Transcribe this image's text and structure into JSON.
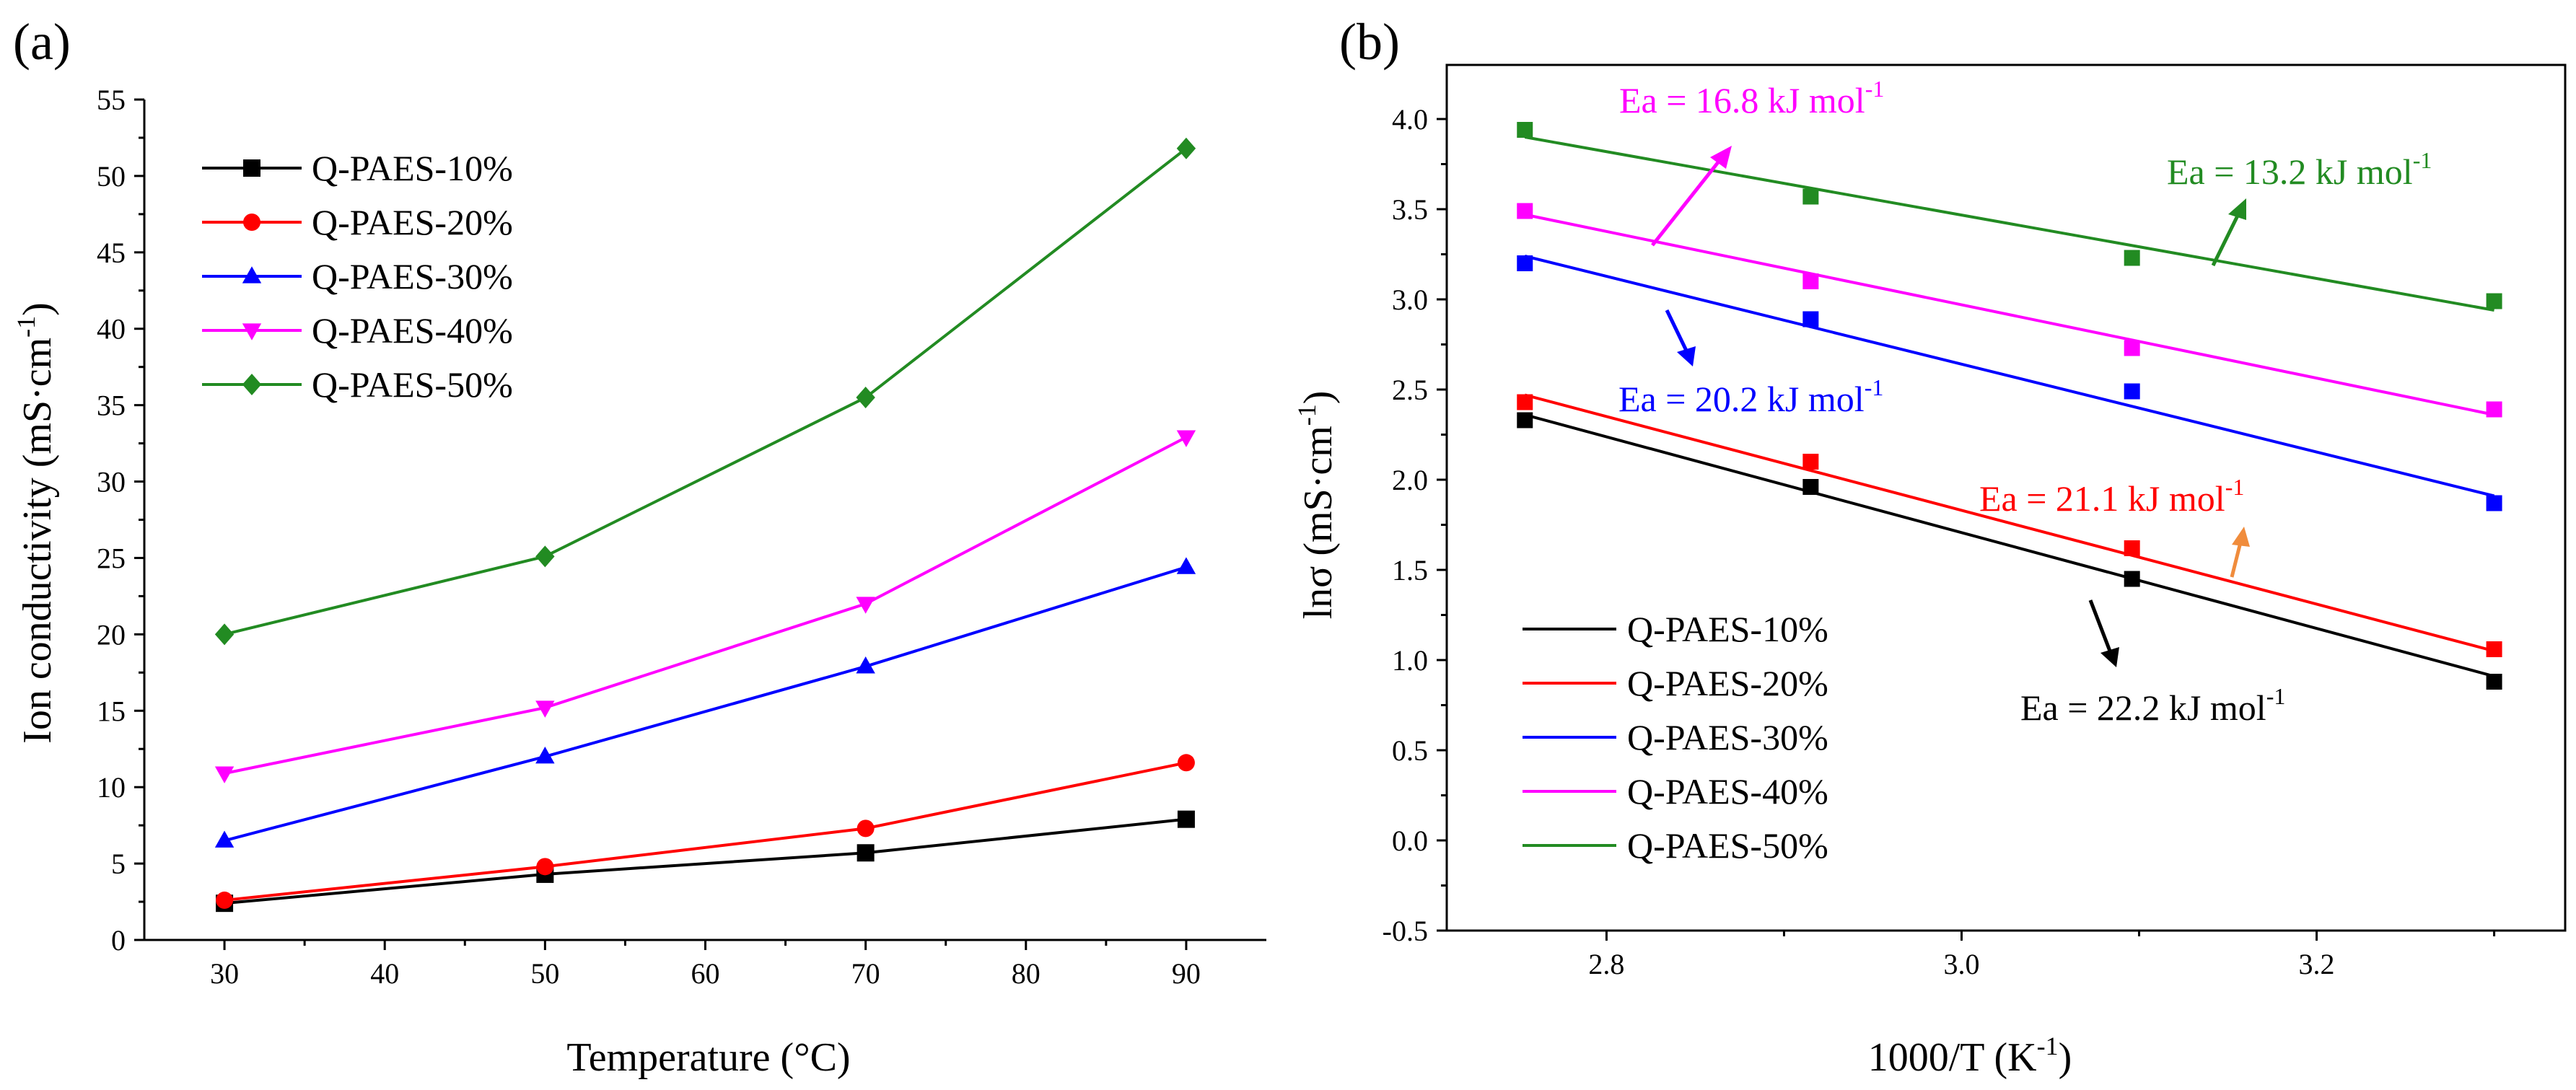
{
  "chart_data": [
    {
      "panel": "(a)",
      "type": "line",
      "title": "",
      "xlabel": "Temperature (°C)",
      "ylabel_main": "Ion conductivity (mS·cm",
      "ylabel_sup": "-1",
      "ylabel_end": ")",
      "xlim": [
        25,
        95
      ],
      "ylim": [
        0,
        55
      ],
      "xticks": [
        30,
        40,
        50,
        60,
        70,
        80,
        90
      ],
      "yticks": [
        0,
        5,
        10,
        15,
        20,
        25,
        30,
        35,
        40,
        45,
        50,
        55
      ],
      "grid": false,
      "legend_position": "top-left",
      "x": [
        30,
        50,
        70,
        90
      ],
      "series": [
        {
          "name": "Q-PAES-10%",
          "color": "#000000",
          "marker": "square",
          "values": [
            2.4,
            4.3,
            5.7,
            7.9
          ]
        },
        {
          "name": "Q-PAES-20%",
          "color": "#ff0000",
          "marker": "circle",
          "values": [
            2.6,
            4.8,
            7.3,
            11.6
          ]
        },
        {
          "name": "Q-PAES-30%",
          "color": "#0000ff",
          "marker": "triangle-up",
          "values": [
            6.5,
            12.0,
            17.9,
            24.4
          ]
        },
        {
          "name": "Q-PAES-40%",
          "color": "#ff00ff",
          "marker": "triangle-down",
          "values": [
            10.9,
            15.2,
            22.0,
            32.9
          ]
        },
        {
          "name": "Q-PAES-50%",
          "color": "#228b22",
          "marker": "diamond",
          "values": [
            20.0,
            25.1,
            35.5,
            51.8
          ]
        }
      ]
    },
    {
      "panel": "(b)",
      "type": "scatter",
      "title": "",
      "xlabel_main": "1000/T (K",
      "xlabel_sup": "-1",
      "xlabel_end": ")",
      "ylabel_main": "lnσ (mS·cm",
      "ylabel_sup": "-1",
      "ylabel_end": ")",
      "xlim": [
        2.71,
        3.34
      ],
      "ylim": [
        -0.5,
        4.3
      ],
      "xticks": [
        2.8,
        3.0,
        3.2
      ],
      "xtick_labels": [
        "2.8",
        "3.0",
        "3.2"
      ],
      "yticks": [
        -0.5,
        0.0,
        0.5,
        1.0,
        1.5,
        2.0,
        2.5,
        3.0,
        3.5,
        4.0
      ],
      "ytick_labels": [
        "-0.5",
        "0.0",
        "0.5",
        "1.0",
        "1.5",
        "2.0",
        "2.5",
        "3.0",
        "3.5",
        "4.0"
      ],
      "grid": false,
      "legend_position": "bottom-left",
      "x": [
        2.754,
        2.915,
        3.096,
        3.3
      ],
      "series": [
        {
          "name": "Q-PAES-10%",
          "color": "#000000",
          "values": [
            2.33,
            1.96,
            1.45,
            0.88
          ],
          "fit": [
            2.36,
            0.91
          ]
        },
        {
          "name": "Q-PAES-20%",
          "color": "#ff0000",
          "values": [
            2.43,
            2.1,
            1.62,
            1.06
          ],
          "fit": [
            2.47,
            1.05
          ]
        },
        {
          "name": "Q-PAES-30%",
          "color": "#0000ff",
          "values": [
            3.2,
            2.89,
            2.49,
            1.87
          ],
          "fit": [
            3.24,
            1.91
          ]
        },
        {
          "name": "Q-PAES-40%",
          "color": "#ff00ff",
          "values": [
            3.49,
            3.1,
            2.73,
            2.39
          ],
          "fit": [
            3.47,
            2.36
          ]
        },
        {
          "name": "Q-PAES-50%",
          "color": "#228b22",
          "values": [
            3.94,
            3.57,
            3.23,
            2.99
          ],
          "fit": [
            3.9,
            2.94
          ]
        }
      ],
      "annotations": [
        {
          "id": "ea-50",
          "text_main": "Ea = 13.2 kJ mol",
          "text_sup": "-1",
          "color": "#228b22"
        },
        {
          "id": "ea-40",
          "text_main": "Ea = 16.8 kJ mol",
          "text_sup": "-1",
          "color": "#ff00ff"
        },
        {
          "id": "ea-30",
          "text_main": "Ea = 20.2 kJ mol",
          "text_sup": "-1",
          "color": "#0000ff"
        },
        {
          "id": "ea-20",
          "text_main": "Ea = 21.1 kJ mol",
          "text_sup": "-1",
          "color": "#ff0000",
          "arrow_color": "#f08c3c"
        },
        {
          "id": "ea-10",
          "text_main": "Ea = 22.2 kJ mol",
          "text_sup": "-1",
          "color": "#000000"
        }
      ]
    }
  ]
}
